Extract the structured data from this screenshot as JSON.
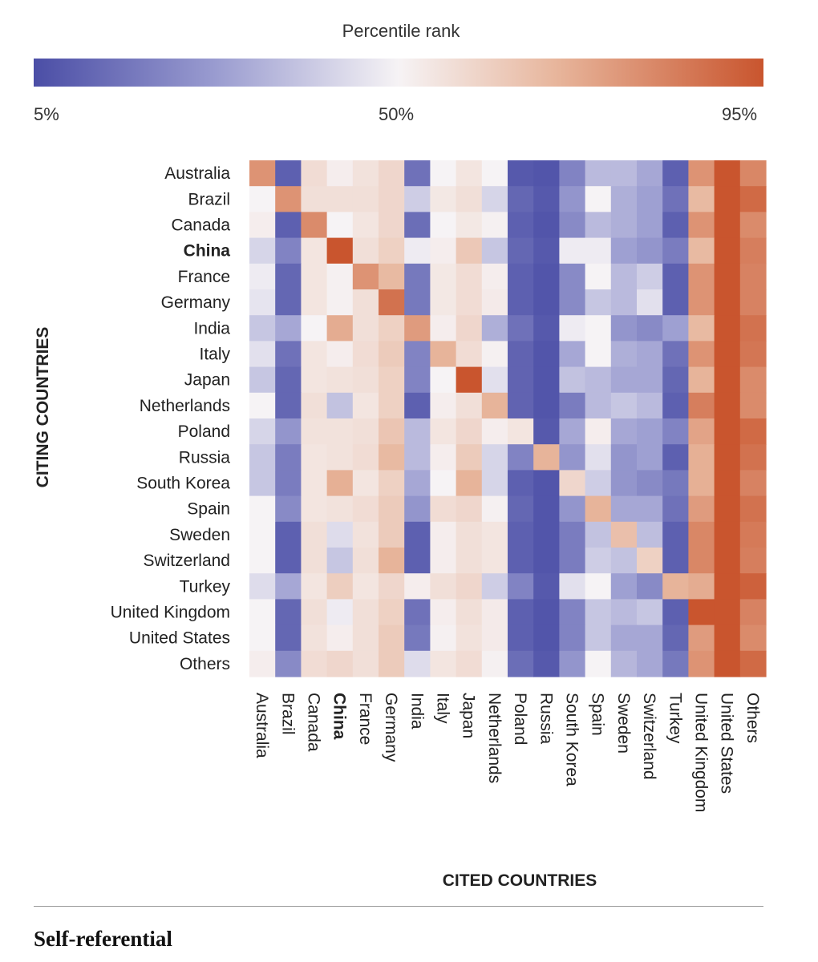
{
  "chart_data": {
    "type": "heatmap",
    "legend": {
      "title": "Percentile rank",
      "low_label": "5%",
      "mid_label": "50%",
      "high_label": "95%"
    },
    "xlabel": "CITED COUNTRIES",
    "ylabel": "CITING COUNTRIES",
    "highlight": "China",
    "rows": [
      "Australia",
      "Brazil",
      "Canada",
      "China",
      "France",
      "Germany",
      "India",
      "Italy",
      "Japan",
      "Netherlands",
      "Poland",
      "Russia",
      "South Korea",
      "Spain",
      "Sweden",
      "Switzerland",
      "Turkey",
      "United Kingdom",
      "United States",
      "Others"
    ],
    "columns": [
      "Australia",
      "Brazil",
      "Canada",
      "China",
      "France",
      "Germany",
      "India",
      "Italy",
      "Japan",
      "Netherlands",
      "Poland",
      "Russia",
      "South Korea",
      "Spain",
      "Sweden",
      "Switzerland",
      "Turkey",
      "United Kingdom",
      "United States",
      "Others"
    ],
    "values": [
      [
        80,
        10,
        58,
        52,
        56,
        60,
        15,
        50,
        55,
        50,
        8,
        7,
        20,
        35,
        35,
        30,
        10,
        80,
        95,
        83
      ],
      [
        50,
        80,
        57,
        57,
        57,
        60,
        40,
        54,
        57,
        42,
        12,
        8,
        25,
        50,
        32,
        28,
        15,
        70,
        95,
        90
      ],
      [
        52,
        10,
        82,
        50,
        55,
        60,
        14,
        50,
        54,
        51,
        10,
        7,
        22,
        35,
        32,
        28,
        10,
        80,
        95,
        82
      ],
      [
        42,
        20,
        55,
        95,
        57,
        62,
        48,
        52,
        65,
        38,
        12,
        8,
        48,
        48,
        28,
        25,
        18,
        70,
        95,
        85
      ],
      [
        48,
        12,
        55,
        51,
        80,
        70,
        17,
        54,
        58,
        52,
        10,
        7,
        22,
        50,
        35,
        40,
        10,
        80,
        95,
        84
      ],
      [
        46,
        12,
        55,
        51,
        57,
        88,
        17,
        54,
        58,
        53,
        10,
        7,
        22,
        38,
        35,
        45,
        10,
        80,
        95,
        84
      ],
      [
        38,
        30,
        50,
        74,
        57,
        62,
        78,
        52,
        60,
        32,
        15,
        8,
        48,
        50,
        25,
        22,
        28,
        70,
        95,
        88
      ],
      [
        45,
        15,
        55,
        52,
        58,
        64,
        20,
        72,
        58,
        51,
        11,
        7,
        30,
        50,
        32,
        30,
        15,
        80,
        95,
        87
      ],
      [
        38,
        12,
        55,
        56,
        57,
        62,
        20,
        50,
        96,
        45,
        11,
        7,
        37,
        35,
        30,
        30,
        12,
        72,
        95,
        82
      ],
      [
        50,
        12,
        57,
        37,
        55,
        62,
        10,
        52,
        57,
        72,
        11,
        7,
        18,
        35,
        38,
        35,
        10,
        85,
        95,
        82
      ],
      [
        42,
        25,
        56,
        56,
        57,
        66,
        35,
        55,
        60,
        52,
        55,
        8,
        30,
        52,
        30,
        28,
        20,
        76,
        95,
        90
      ],
      [
        38,
        18,
        55,
        56,
        58,
        70,
        35,
        52,
        64,
        42,
        20,
        72,
        25,
        45,
        25,
        28,
        10,
        73,
        95,
        88
      ],
      [
        38,
        18,
        55,
        73,
        55,
        62,
        30,
        50,
        72,
        42,
        10,
        7,
        60,
        40,
        25,
        22,
        17,
        73,
        95,
        84
      ],
      [
        50,
        22,
        55,
        56,
        58,
        64,
        25,
        58,
        60,
        51,
        12,
        7,
        25,
        72,
        30,
        30,
        15,
        78,
        95,
        88
      ],
      [
        50,
        10,
        57,
        44,
        56,
        64,
        10,
        52,
        57,
        55,
        10,
        7,
        18,
        37,
        68,
        36,
        10,
        83,
        95,
        86
      ],
      [
        50,
        10,
        57,
        38,
        57,
        72,
        10,
        52,
        57,
        55,
        10,
        7,
        18,
        40,
        37,
        62,
        10,
        83,
        95,
        85
      ],
      [
        44,
        30,
        55,
        63,
        55,
        60,
        52,
        57,
        60,
        40,
        20,
        8,
        45,
        50,
        28,
        22,
        72,
        74,
        95,
        92
      ],
      [
        50,
        12,
        57,
        48,
        57,
        62,
        15,
        52,
        57,
        53,
        10,
        7,
        20,
        38,
        35,
        38,
        10,
        95,
        95,
        84
      ],
      [
        50,
        12,
        56,
        52,
        57,
        64,
        17,
        51,
        56,
        53,
        10,
        7,
        20,
        38,
        30,
        30,
        12,
        78,
        95,
        82
      ],
      [
        52,
        22,
        58,
        60,
        57,
        64,
        44,
        55,
        58,
        51,
        14,
        8,
        25,
        50,
        34,
        30,
        17,
        80,
        95,
        90
      ]
    ]
  },
  "section_title": "Self-referential"
}
